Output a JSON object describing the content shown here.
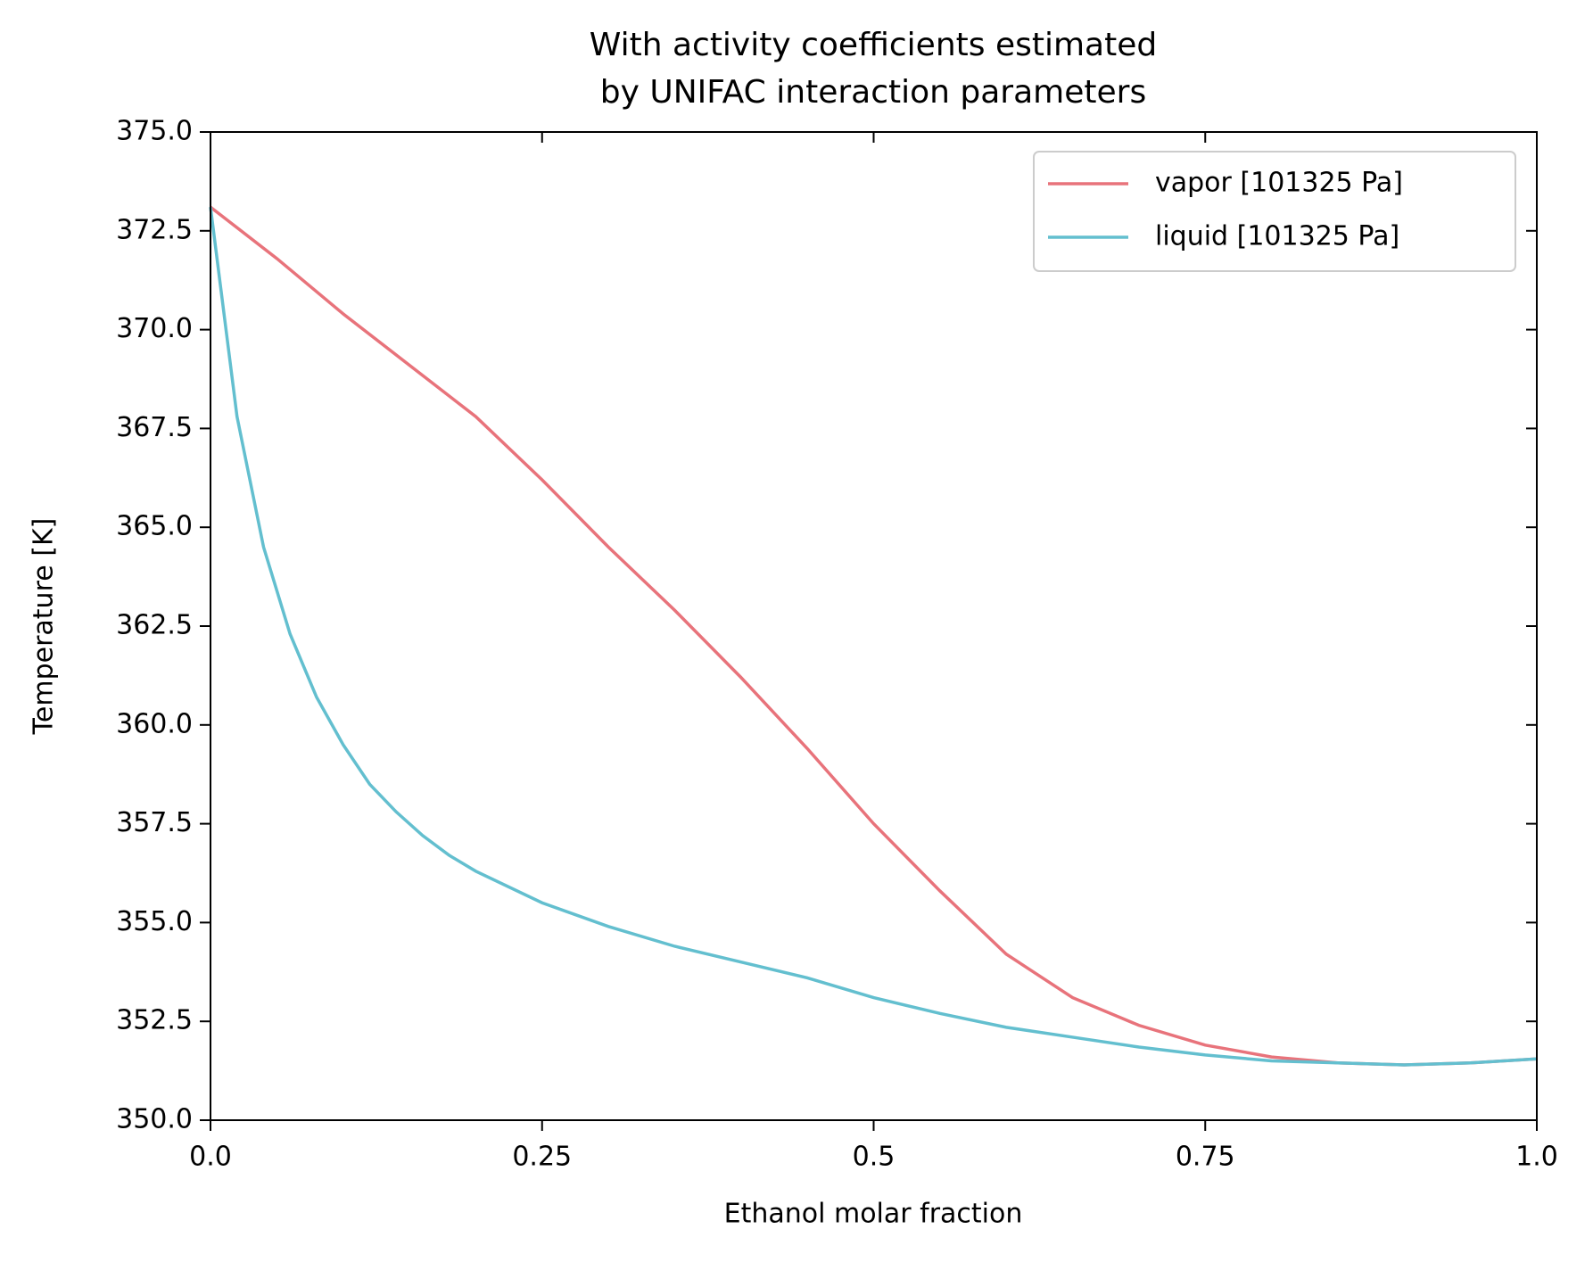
{
  "chart_data": {
    "type": "line",
    "title": [
      "With activity coefficients estimated",
      "by UNIFAC interaction parameters"
    ],
    "x_label": "Ethanol molar fraction",
    "y_label": "Temperature [K]",
    "xlim": [
      0,
      1
    ],
    "ylim": [
      350,
      375
    ],
    "xticks": [
      {
        "value": 0,
        "label": "0.0"
      },
      0.25,
      0.5,
      0.75,
      {
        "value": 1,
        "label": "1.0"
      }
    ],
    "yticks": [
      {
        "value": 350,
        "label": "350.0"
      },
      352.5,
      {
        "value": 355,
        "label": "355.0"
      },
      357.5,
      {
        "value": 360,
        "label": "360.0"
      },
      362.5,
      {
        "value": 365,
        "label": "365.0"
      },
      367.5,
      {
        "value": 370,
        "label": "370.0"
      },
      372.5,
      {
        "value": 375,
        "label": "375.0"
      }
    ],
    "grid": false,
    "legend": "upper right",
    "series": [
      {
        "name": "vapor [101325 Pa]",
        "color": "#e8737b",
        "x": [
          0,
          0.05,
          0.1,
          0.15,
          0.2,
          0.25,
          0.3,
          0.35,
          0.4,
          0.45,
          0.5,
          0.55,
          0.6,
          0.65,
          0.7,
          0.75,
          0.8,
          0.85,
          0.9,
          0.95,
          1
        ],
        "values": [
          373.1,
          371.8,
          370.4,
          369.1,
          367.8,
          366.2,
          364.5,
          362.9,
          361.2,
          359.4,
          357.5,
          355.8,
          354.2,
          353.1,
          352.4,
          351.9,
          351.6,
          351.45,
          351.4,
          351.45,
          351.55
        ]
      },
      {
        "name": "liquid [101325 Pa]",
        "color": "#63bfcf",
        "x": [
          0,
          0.02,
          0.04,
          0.06,
          0.08,
          0.1,
          0.12,
          0.14,
          0.16,
          0.18,
          0.2,
          0.25,
          0.3,
          0.35,
          0.4,
          0.45,
          0.5,
          0.55,
          0.6,
          0.65,
          0.7,
          0.75,
          0.8,
          0.85,
          0.9,
          0.95,
          1
        ],
        "values": [
          373.1,
          367.8,
          364.5,
          362.3,
          360.7,
          359.5,
          358.5,
          357.8,
          357.2,
          356.7,
          356.3,
          355.5,
          354.9,
          354.4,
          354.0,
          353.6,
          353.1,
          352.7,
          352.35,
          352.1,
          351.85,
          351.65,
          351.5,
          351.45,
          351.4,
          351.45,
          351.55
        ]
      }
    ]
  }
}
